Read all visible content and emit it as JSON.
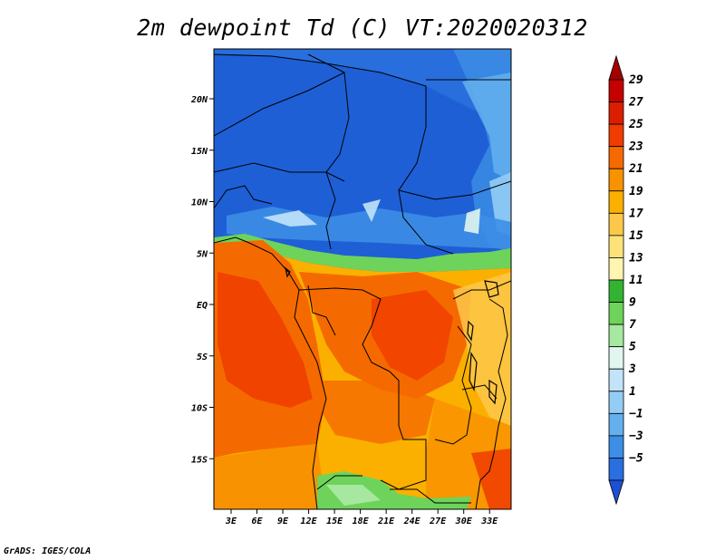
{
  "title": "2m dewpoint Td (C) VT:2020020312",
  "credit": "GrADS: IGES/COLA",
  "map": {
    "lat_labels": [
      "20N",
      "15N",
      "10N",
      "5N",
      "EQ",
      "5S",
      "10S",
      "15S"
    ],
    "lon_labels": [
      "3E",
      "6E",
      "9E",
      "12E",
      "15E",
      "18E",
      "21E",
      "24E",
      "27E",
      "30E",
      "33E"
    ],
    "lat_values": [
      20,
      15,
      10,
      5,
      0,
      -5,
      -10,
      -15
    ],
    "lon_values": [
      3,
      6,
      9,
      12,
      15,
      18,
      21,
      24,
      27,
      30,
      33
    ]
  },
  "colorbar": {
    "labels": [
      "29",
      "27",
      "25",
      "23",
      "21",
      "19",
      "17",
      "15",
      "13",
      "11",
      "9",
      "7",
      "5",
      "3",
      "1",
      "−1",
      "−3",
      "−5"
    ],
    "colors": [
      "#a50000",
      "#c40000",
      "#dc1e00",
      "#f03c00",
      "#f56a00",
      "#f89200",
      "#fbb000",
      "#fcc84a",
      "#fde27a",
      "#fff4b0",
      "#32b432",
      "#6ed35a",
      "#a6e8a0",
      "#e0f6ee",
      "#c2e4f8",
      "#94cdf4",
      "#64b0ee",
      "#3c8ee6",
      "#2a6ee0",
      "#1e50d6"
    ]
  },
  "palette": {
    "blue_deep": "#1e5fd6",
    "blue_mid": "#3c8ee6",
    "orange_dark": "#f05a0a",
    "orange": "#f58a10",
    "orange_light": "#fbb030",
    "green": "#4cc04c"
  }
}
